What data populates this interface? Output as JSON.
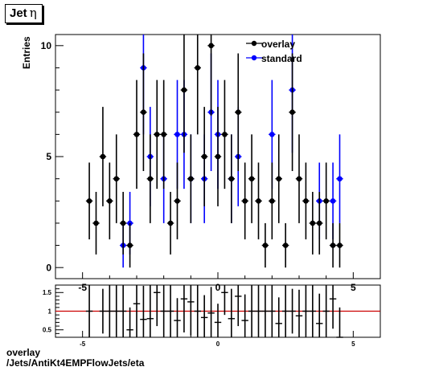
{
  "header": {
    "title_main": "Jet",
    "title_symbol": "η"
  },
  "footer": {
    "line1": "overlay",
    "line2": "/Jets/AntiKt4EMPFlowJets/eta"
  },
  "colors": {
    "overlay": "#000000",
    "standard": "#0000ff",
    "ratio_line": "#cc0000"
  },
  "chart_data": [
    {
      "type": "scatter",
      "title": "Jet η",
      "xlabel": "",
      "ylabel": "Entries",
      "xlim": [
        -6.0,
        6.0
      ],
      "ylim": [
        -0.5,
        10.5
      ],
      "yticks": [
        0,
        5,
        10
      ],
      "xticks": [
        -5,
        0,
        5
      ],
      "legend_position": "top-right",
      "series": [
        {
          "name": "overlay",
          "x": [
            -4.75,
            -4.5,
            -4.25,
            -4.0,
            -3.75,
            -3.5,
            -3.25,
            -3.0,
            -2.75,
            -2.5,
            -2.25,
            -2.0,
            -1.75,
            -1.5,
            -1.25,
            -1.0,
            -0.75,
            -0.5,
            -0.25,
            0.0,
            0.25,
            0.5,
            0.75,
            1.0,
            1.25,
            1.5,
            1.75,
            2.0,
            2.25,
            2.5,
            2.75,
            3.0,
            3.25,
            3.5,
            3.75,
            4.0,
            4.25,
            4.5
          ],
          "y": [
            3,
            2,
            5,
            3,
            4,
            2,
            1,
            6,
            7,
            4,
            6,
            6,
            2,
            3,
            8,
            4,
            9,
            5,
            10,
            5,
            6,
            4,
            7,
            3,
            4,
            3,
            1,
            3,
            4,
            1,
            7,
            4,
            3,
            2,
            2,
            3,
            1,
            1
          ],
          "err": [
            1.73,
            1.41,
            2.24,
            1.73,
            2.0,
            1.41,
            1.0,
            2.45,
            2.65,
            2.0,
            2.45,
            2.45,
            1.41,
            1.73,
            2.83,
            2.0,
            3.0,
            2.24,
            3.16,
            2.24,
            2.45,
            2.0,
            2.65,
            1.73,
            2.0,
            1.73,
            1.0,
            1.73,
            2.0,
            1.0,
            2.65,
            2.0,
            1.73,
            1.41,
            1.41,
            1.73,
            1.0,
            1.0
          ]
        },
        {
          "name": "standard",
          "x": [
            -3.5,
            -3.25,
            -2.75,
            -2.5,
            -2.0,
            -1.5,
            -1.25,
            -1.0,
            -0.5,
            -0.25,
            0.0,
            0.5,
            0.75,
            2.0,
            2.75,
            3.75,
            4.25,
            4.5
          ],
          "y": [
            1,
            2,
            9,
            5,
            4,
            6,
            6,
            4,
            4,
            7,
            6,
            4,
            5,
            6,
            8,
            3,
            3,
            4
          ],
          "err": [
            1.0,
            1.41,
            3.0,
            2.24,
            2.0,
            2.45,
            2.45,
            2.0,
            2.0,
            2.65,
            2.45,
            2.0,
            2.24,
            2.45,
            2.83,
            1.73,
            1.73,
            2.0
          ]
        }
      ]
    },
    {
      "type": "scatter",
      "title": "",
      "xlabel": "",
      "ylabel": "",
      "xlim": [
        -6.0,
        6.0
      ],
      "ylim": [
        0.3,
        1.7
      ],
      "yticks": [
        0.5,
        1.0,
        1.5
      ],
      "ytick_labels": [
        "0.5",
        "1",
        "1.5"
      ],
      "xticks": [
        -5,
        0,
        5
      ],
      "reference_line": 1.0,
      "series": [
        {
          "name": "",
          "x": [
            -4.75,
            -4.25,
            -4.0,
            -3.75,
            -3.5,
            -3.25,
            -3.0,
            -2.75,
            -2.5,
            -2.25,
            -2.0,
            -1.75,
            -1.5,
            -1.25,
            -1.0,
            -0.75,
            -0.5,
            -0.25,
            0.0,
            0.25,
            0.5,
            0.75,
            1.0,
            1.25,
            1.5,
            1.75,
            2.0,
            2.25,
            2.5,
            2.75,
            3.0,
            3.25,
            3.5,
            3.75,
            4.0,
            4.25,
            4.5
          ],
          "y": [
            1.0,
            1.0,
            1.0,
            1.0,
            1.0,
            0.5,
            1.2,
            0.78,
            0.8,
            1.5,
            1.0,
            1.0,
            0.75,
            1.33,
            1.25,
            1.0,
            0.83,
            0.95,
            0.7,
            1.5,
            0.8,
            1.4,
            0.75,
            1.0,
            1.0,
            1.0,
            1.0,
            0.67,
            1.0,
            1.0,
            0.875,
            1.0,
            1.0,
            0.67,
            1.0,
            1.33,
            0.3
          ],
          "err": [
            0.7,
            0.6,
            0.7,
            0.8,
            1.0,
            0.6,
            0.9,
            0.9,
            0.9,
            0.9,
            0.8,
            1.0,
            0.6,
            0.9,
            0.9,
            0.7,
            0.6,
            0.7,
            0.5,
            0.6,
            0.8,
            0.8,
            0.7,
            0.8,
            0.8,
            1.0,
            0.8,
            0.7,
            1.0,
            0.6,
            0.7,
            1.0,
            0.9,
            0.8,
            0.9,
            0.8,
            0.8
          ]
        }
      ]
    }
  ]
}
